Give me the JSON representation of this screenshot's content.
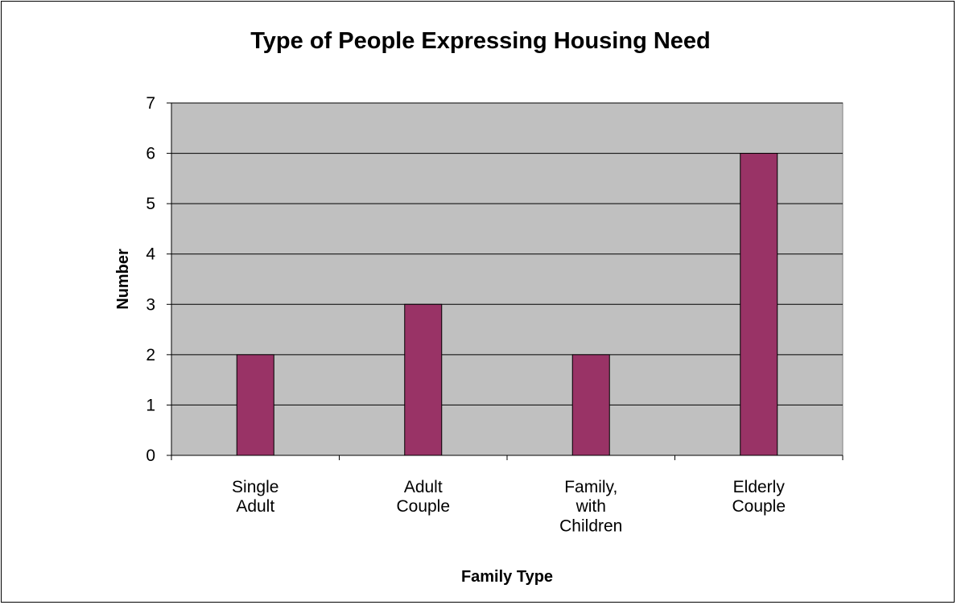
{
  "chart_data": {
    "type": "bar",
    "title": "Type of People Expressing Housing Need",
    "xlabel": "Family Type",
    "ylabel": "Number",
    "categories": [
      [
        "Single",
        "Adult"
      ],
      [
        "Adult",
        "Couple"
      ],
      [
        "Family,",
        "with",
        "Children"
      ],
      [
        "Elderly",
        "Couple"
      ]
    ],
    "values": [
      2,
      3,
      2,
      6
    ],
    "ylim": [
      0,
      7
    ],
    "yticks": [
      0,
      1,
      2,
      3,
      4,
      5,
      6,
      7
    ],
    "grid": true,
    "legend": "none",
    "colors": {
      "bar": "#993366",
      "plot_background": "#c0c0c0",
      "gridline": "#000000"
    }
  }
}
